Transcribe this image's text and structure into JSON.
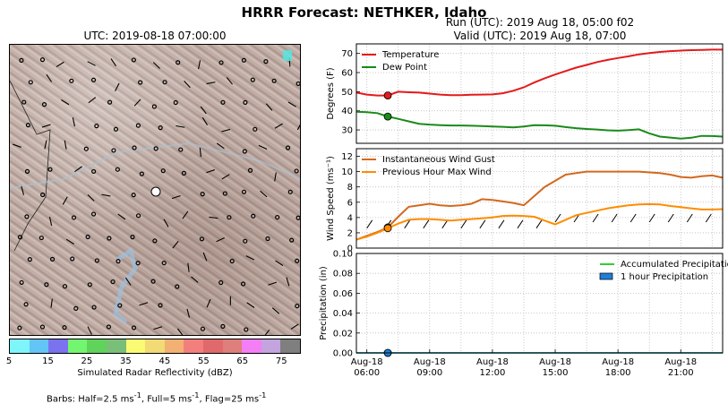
{
  "figure": {
    "suptitle": "HRRR Forecast: NETHKER, Idaho",
    "map_title": "UTC: 2019-08-18 07:00:00",
    "run_line": "Run (UTC): 2019 Aug 18, 05:00 f02",
    "valid_line": "Valid (UTC): 2019 Aug 18, 07:00",
    "barbs_prefix": "Barbs: Half=2.5 ms",
    "barbs_mid1": ", Full=5 ms",
    "barbs_mid2": ", Flag=25 ms",
    "barbs_sup": "-1"
  },
  "colorbar": {
    "label": "Simulated Radar Reflectivity (dBZ)",
    "ticks": [
      "5",
      "15",
      "25",
      "35",
      "45",
      "55",
      "65",
      "75"
    ],
    "colors": [
      "#7ef5fb",
      "#63c4f6",
      "#7b72f0",
      "#72f66f",
      "#5fd35a",
      "#7abf78",
      "#fafb72",
      "#f2da74",
      "#f2b073",
      "#f37f7c",
      "#e0696b",
      "#de7f7b",
      "#f47ef5",
      "#c3a4de",
      "#7f7f7f"
    ]
  },
  "chart_data": [
    {
      "type": "line",
      "title": "",
      "xlabel": "",
      "ylabel": "Degrees (F)",
      "x": [
        5.5,
        6,
        6.5,
        7,
        7.5,
        8,
        8.5,
        9,
        9.5,
        10,
        10.5,
        11,
        11.5,
        12,
        12.5,
        13,
        13.5,
        14,
        14.5,
        15,
        15.5,
        16,
        16.5,
        17,
        17.5,
        18,
        18.5,
        19,
        19.5,
        20,
        20.5,
        21,
        21.5,
        22,
        22.5,
        23
      ],
      "ylim": [
        23,
        75
      ],
      "yticks": [
        30,
        40,
        50,
        60,
        70
      ],
      "series": [
        {
          "name": "Temperature",
          "color": "#e41a1c",
          "values": [
            49.5,
            48.5,
            48,
            48,
            50,
            49.7,
            49.5,
            49,
            48.5,
            48.2,
            48.2,
            48.4,
            48.5,
            48.6,
            49.2,
            50.5,
            52.3,
            54.8,
            57,
            59,
            60.8,
            62.6,
            64,
            65.5,
            66.6,
            67.6,
            68.5,
            69.5,
            70.2,
            70.8,
            71.2,
            71.5,
            71.7,
            71.8,
            72,
            72
          ]
        },
        {
          "name": "Dew Point",
          "color": "#1a8a1a",
          "values": [
            39.5,
            39.3,
            38.8,
            37,
            35.8,
            34.5,
            33.2,
            32.8,
            32.5,
            32.3,
            32.3,
            32.2,
            32,
            31.8,
            31.6,
            31.3,
            31.8,
            32.5,
            32.4,
            32.2,
            31.5,
            30.9,
            30.5,
            30.2,
            29.8,
            29.6,
            29.9,
            30.3,
            28.2,
            26.5,
            26,
            25.5,
            25.9,
            26.9,
            26.8,
            26.5
          ]
        }
      ],
      "marker_x": 7,
      "legend": "top-left",
      "grid": true
    },
    {
      "type": "line",
      "title": "",
      "xlabel": "",
      "ylabel": "Wind Speed (ms⁻¹)",
      "x": [
        5.5,
        6,
        6.5,
        7,
        7.5,
        8,
        8.5,
        9,
        9.5,
        10,
        10.5,
        11,
        11.5,
        12,
        12.5,
        13,
        13.5,
        14,
        14.5,
        15,
        15.5,
        16,
        16.5,
        17,
        17.5,
        18,
        18.5,
        19,
        19.5,
        20,
        20.5,
        21,
        21.5,
        22,
        22.5,
        23
      ],
      "ylim": [
        0,
        13
      ],
      "yticks": [
        0,
        2,
        4,
        6,
        8,
        10,
        12
      ],
      "series": [
        {
          "name": "Instantaneous Wind Gust",
          "color": "#d2691e",
          "values": [
            1.1,
            1.6,
            2.1,
            2.7,
            4.1,
            5.4,
            5.6,
            5.8,
            5.6,
            5.5,
            5.6,
            5.8,
            6.4,
            6.3,
            6.1,
            5.9,
            5.6,
            6.8,
            8,
            8.8,
            9.6,
            9.8,
            10,
            10,
            10,
            10,
            10,
            10,
            9.9,
            9.8,
            9.6,
            9.3,
            9.2,
            9.4,
            9.5,
            9.2
          ]
        },
        {
          "name": "Previous Hour Max Wind",
          "color": "#ff8c00",
          "values": [
            1.1,
            1.5,
            2,
            2.6,
            3.2,
            3.7,
            3.8,
            3.8,
            3.7,
            3.6,
            3.7,
            3.8,
            3.9,
            4.0,
            4.2,
            4.25,
            4.2,
            4.1,
            3.6,
            3.1,
            3.7,
            4.3,
            4.6,
            4.9,
            5.2,
            5.4,
            5.6,
            5.7,
            5.75,
            5.7,
            5.5,
            5.35,
            5.2,
            5.05,
            5.05,
            5.1
          ]
        }
      ],
      "marker_x": 7,
      "legend": "top-left",
      "grid": true
    },
    {
      "type": "line",
      "title": "",
      "xlabel": "",
      "ylabel": "Precipitation (in)",
      "x": [
        5.5,
        6,
        6.5,
        7,
        7.5,
        8,
        8.5,
        9,
        9.5,
        10,
        10.5,
        11,
        11.5,
        12,
        12.5,
        13,
        13.5,
        14,
        14.5,
        15,
        15.5,
        16,
        16.5,
        17,
        17.5,
        18,
        18.5,
        19,
        19.5,
        20,
        20.5,
        21,
        21.5,
        22,
        22.5,
        23
      ],
      "ylim": [
        0,
        0.1
      ],
      "yticks": [
        "0.00",
        "0.02",
        "0.04",
        "0.06",
        "0.08",
        "0.10"
      ],
      "xticks": [
        {
          "x": 6,
          "line1": "Aug-18",
          "line2": "06:00"
        },
        {
          "x": 9,
          "line1": "Aug-18",
          "line2": "09:00"
        },
        {
          "x": 12,
          "line1": "Aug-18",
          "line2": "12:00"
        },
        {
          "x": 15,
          "line1": "Aug-18",
          "line2": "15:00"
        },
        {
          "x": 18,
          "line1": "Aug-18",
          "line2": "18:00"
        },
        {
          "x": 21,
          "line1": "Aug-18",
          "line2": "21:00"
        }
      ],
      "series": [
        {
          "name": "Accumulated Precipitation",
          "color": "#32cd32",
          "values": [
            0,
            0,
            0,
            0,
            0,
            0,
            0,
            0,
            0,
            0,
            0,
            0,
            0,
            0,
            0,
            0,
            0,
            0,
            0,
            0,
            0,
            0,
            0,
            0,
            0,
            0,
            0,
            0,
            0,
            0,
            0,
            0,
            0,
            0,
            0,
            0
          ]
        },
        {
          "name": "1 hour Precipitation",
          "color": "#1e7fd8",
          "values": [
            0,
            0,
            0,
            0,
            0,
            0,
            0,
            0,
            0,
            0,
            0,
            0,
            0,
            0,
            0,
            0,
            0,
            0,
            0,
            0,
            0,
            0,
            0,
            0,
            0,
            0,
            0,
            0,
            0,
            0,
            0,
            0,
            0,
            0,
            0,
            0
          ]
        }
      ],
      "marker_x": 7,
      "legend": "top-right",
      "grid": true
    }
  ]
}
